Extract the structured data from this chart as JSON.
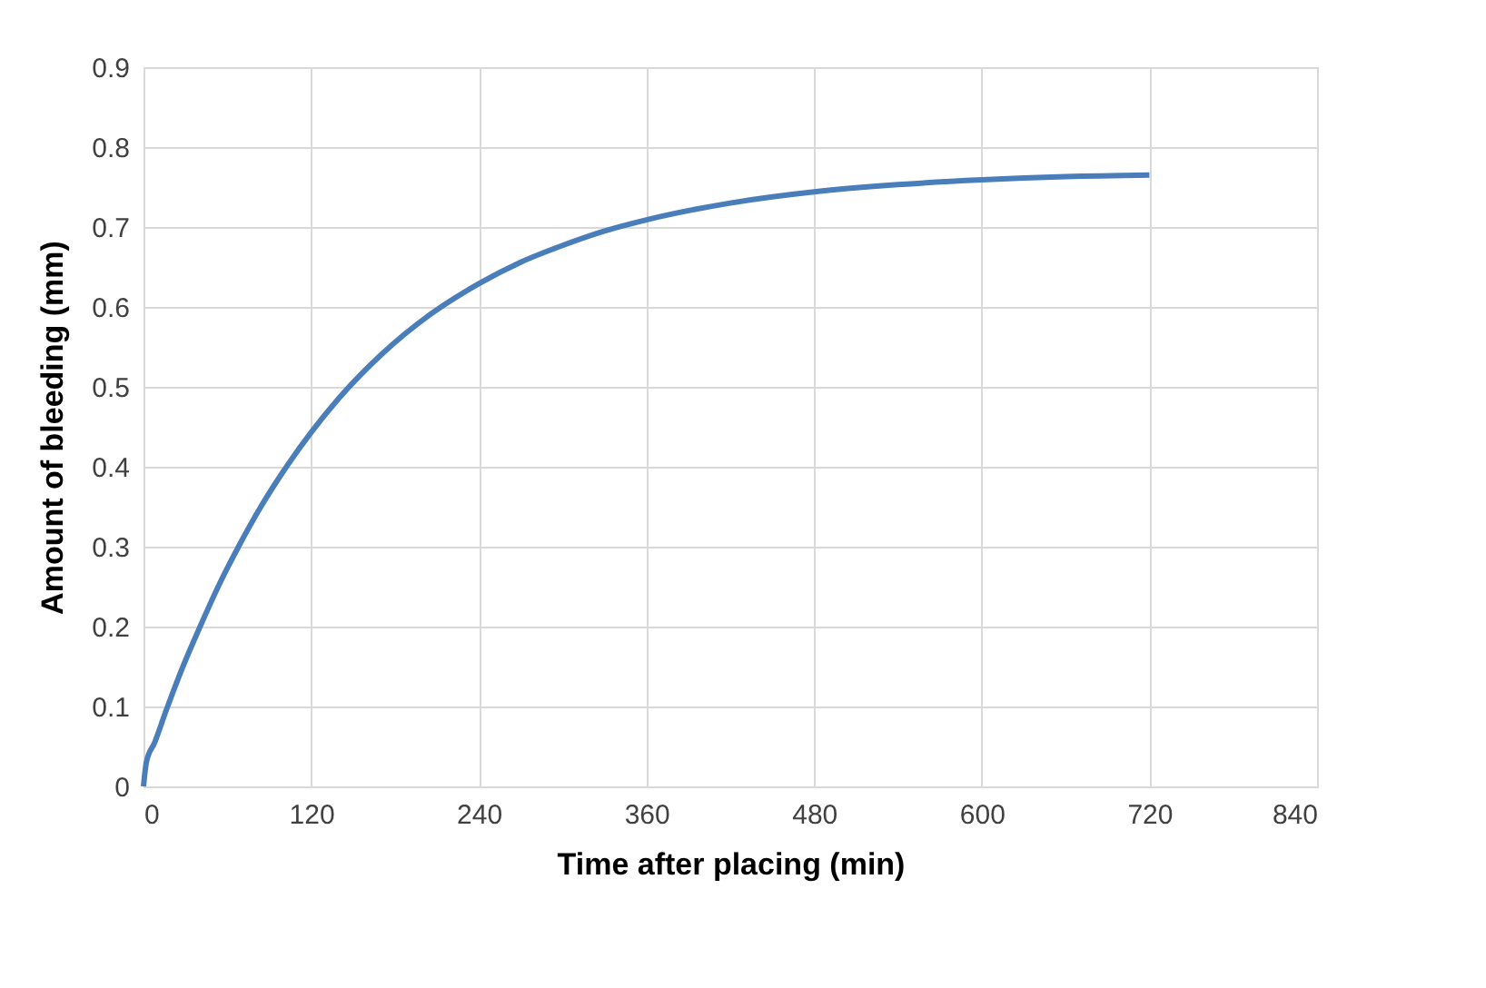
{
  "chart_data": {
    "type": "line",
    "xlabel": "Time after placing (min)",
    "ylabel": "Amount of bleeding (mm)",
    "x": [
      0,
      2,
      8,
      16,
      28,
      40,
      54,
      68,
      84,
      100,
      120,
      140,
      170,
      204,
      240,
      270,
      300,
      330,
      360,
      420,
      480,
      540,
      600,
      660,
      720
    ],
    "series": [
      {
        "color": "#4a7ebb",
        "values": [
          0,
          0.03,
          0.055,
          0.094,
          0.149,
          0.198,
          0.252,
          0.3,
          0.35,
          0.394,
          0.443,
          0.486,
          0.54,
          0.589,
          0.629,
          0.656,
          0.677,
          0.695,
          0.709,
          0.73,
          0.744,
          0.753,
          0.759,
          0.763,
          0.765
        ]
      }
    ],
    "xlim": [
      0,
      840
    ],
    "xticks": [
      0,
      120,
      240,
      360,
      480,
      600,
      720,
      840
    ],
    "ylim": [
      0,
      0.9
    ],
    "yticks": [
      0,
      0.1,
      0.2,
      0.3,
      0.4,
      0.5,
      0.6,
      0.7,
      0.8,
      0.9
    ],
    "grid": true,
    "marker": "none",
    "line_style": "solid"
  }
}
